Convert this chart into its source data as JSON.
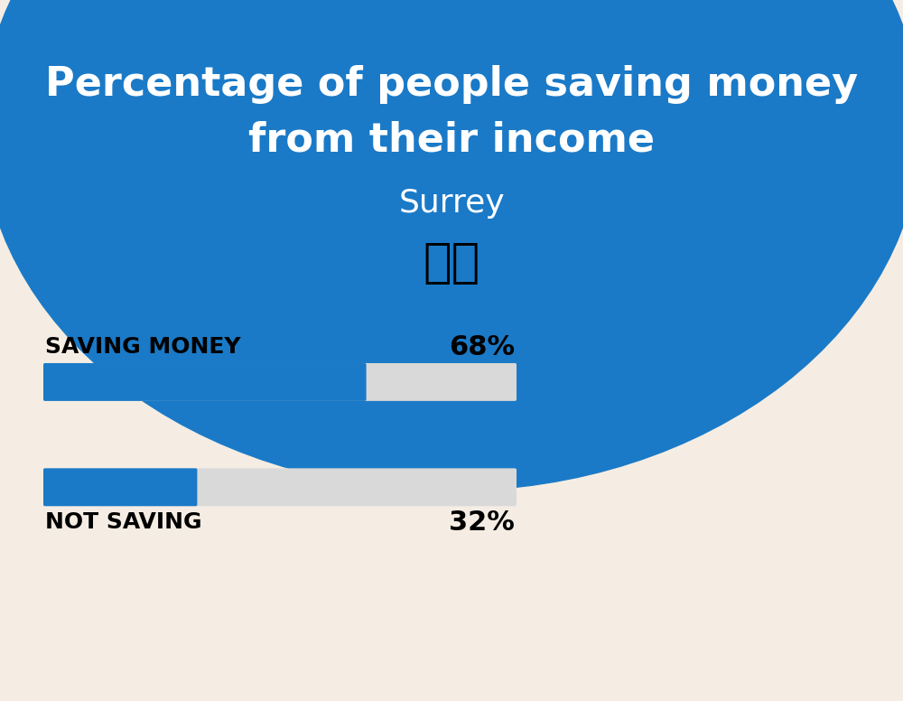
{
  "title_line1": "Percentage of people saving money",
  "title_line2": "from their income",
  "subtitle": "Surrey",
  "background_color": "#f5ede3",
  "header_color": "#1a7ac7",
  "bar_color": "#1a7ac7",
  "bar_bg_color": "#d9d9d9",
  "categories": [
    "SAVING MONEY",
    "NOT SAVING"
  ],
  "values": [
    68,
    32
  ],
  "label_fontsize": 18,
  "pct_fontsize": 22,
  "title_fontsize": 32,
  "subtitle_fontsize": 26
}
